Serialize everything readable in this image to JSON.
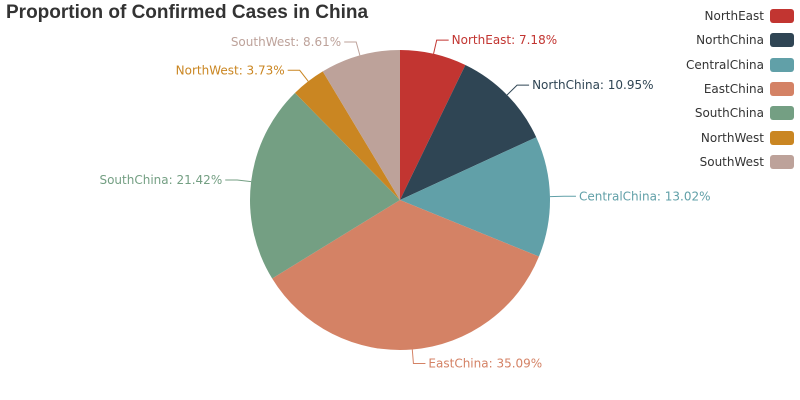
{
  "chart_data": {
    "type": "pie",
    "title": "Proportion of Confirmed Cases in China",
    "legend_placement": "top-right",
    "slices": [
      {
        "name": "NorthEast",
        "value": 7.18,
        "label": "NorthEast: 7.18%",
        "color": "#c23531"
      },
      {
        "name": "NorthChina",
        "value": 10.95,
        "label": "NorthChina: 10.95%",
        "color": "#2f4554"
      },
      {
        "name": "CentralChina",
        "value": 13.02,
        "label": "CentralChina: 13.02%",
        "color": "#61a0a8"
      },
      {
        "name": "EastChina",
        "value": 35.09,
        "label": "EastChina: 35.09%",
        "color": "#d48265"
      },
      {
        "name": "SouthChina",
        "value": 21.42,
        "label": "SouthChina: 21.42%",
        "color": "#749f83"
      },
      {
        "name": "NorthWest",
        "value": 3.73,
        "label": "NorthWest: 3.73%",
        "color": "#ca8622"
      },
      {
        "name": "SouthWest",
        "value": 8.61,
        "label": "SouthWest: 8.61%",
        "color": "#bda29a"
      }
    ]
  }
}
